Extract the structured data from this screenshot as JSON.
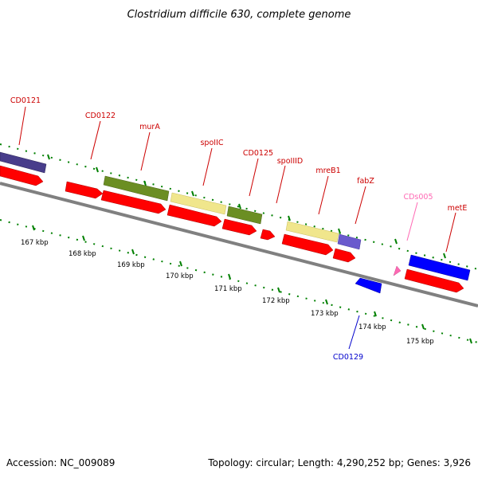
{
  "title": "Clostridium difficile 630, complete genome",
  "footer": {
    "accession": "Accession: NC_009089",
    "stats": "Topology: circular; Length: 4,290,252 bp; Genes: 3,926"
  },
  "colors": {
    "red_gene": "#ff0000",
    "olive_gene": "#6b8e23",
    "khaki_gene": "#f0e68c",
    "purple_gene": "#6a5acd",
    "navy_gene": "#483d8b",
    "blue_gene": "#0000ff",
    "pink_gene": "#ff69b4",
    "tick_green": "#008000",
    "backbone": "#808080",
    "label_red": "#cc0000",
    "label_blue": "#0000cc",
    "label_pink": "#ff69b4"
  },
  "kbp_labels": [
    "167 kbp",
    "168 kbp",
    "169 kbp",
    "170 kbp",
    "171 kbp",
    "172 kbp",
    "173 kbp",
    "174 kbp",
    "175 kbp"
  ],
  "gene_labels": [
    {
      "text": "CD0121",
      "color": "label_red"
    },
    {
      "text": "CD0122",
      "color": "label_red"
    },
    {
      "text": "murA",
      "color": "label_red"
    },
    {
      "text": "spoIIC",
      "color": "label_red"
    },
    {
      "text": "CD0125",
      "color": "label_red"
    },
    {
      "text": "spoIIID",
      "color": "label_red"
    },
    {
      "text": "mreB1",
      "color": "label_red"
    },
    {
      "text": "fabZ",
      "color": "label_red"
    },
    {
      "text": "CDs005",
      "color": "label_pink"
    },
    {
      "text": "metE",
      "color": "label_red"
    },
    {
      "text": "CD0129",
      "color": "label_blue"
    }
  ]
}
